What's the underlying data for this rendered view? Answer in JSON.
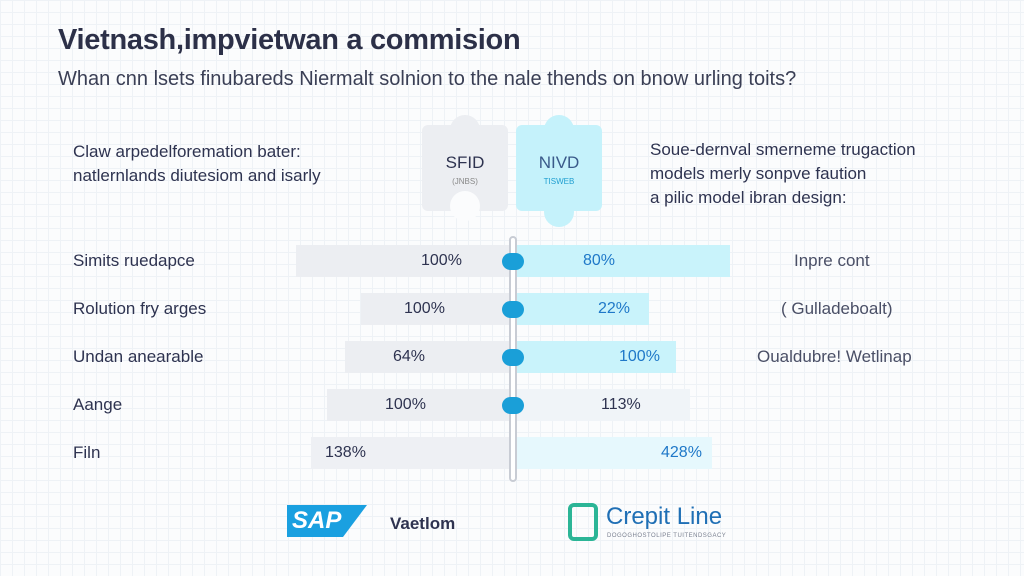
{
  "header": {
    "title": "Vietnash,impvietwan a commision",
    "subtitle": "Whan cnn lsets finubareds Niermalt solnion to the nale thends on bnow urling toits?"
  },
  "descriptions": {
    "left": [
      "Claw arpedelforemation bater:",
      "natlernlands diutesiom and isarly"
    ],
    "right": [
      "Soue-dernval smerneme trugaction",
      "models merly sonpve faution",
      "a pilic model ibran design:"
    ]
  },
  "puzzle": {
    "left": {
      "label": "SFID",
      "sub": "(JNBS)",
      "color": "#eceef2"
    },
    "right": {
      "label": "NIVD",
      "sub": "TISWEB",
      "color": "#c5f2fb"
    }
  },
  "chart_data": {
    "type": "bar",
    "orientation": "diverging-horizontal",
    "categories": [
      "Simits ruedapce",
      "Rolution fry arges",
      "Undan anearable",
      "Aange",
      "Filn"
    ],
    "right_labels": [
      "Inpre cont",
      "( Gulladeboalt)",
      "Oualdubre! Wetlinap",
      "",
      ""
    ],
    "series": [
      {
        "values_text": [
          "100%",
          "100%",
          "64%",
          "100%",
          "138%"
        ],
        "values": [
          100,
          100,
          64,
          100,
          138
        ],
        "color": "#eceef2"
      },
      {
        "values_text": [
          "80%",
          "22%",
          "100%",
          "113%",
          "428%"
        ],
        "values": [
          80,
          22,
          100,
          113,
          428
        ],
        "color": "#c9f3fb"
      }
    ]
  },
  "footer": {
    "sap": "SAP",
    "partner": "Vaetlom",
    "brand": "Crepit Line",
    "brand_sub": "DOGOGHOSTOLIPE TUITENDSGACY"
  },
  "colors": {
    "accent": "#1a9fd8",
    "right_text": "#1f78c8",
    "brand": "#2bb596"
  }
}
